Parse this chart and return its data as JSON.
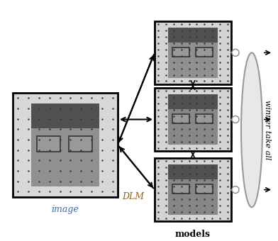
{
  "bg_color": "#ffffff",
  "title": "",
  "image_box_color": "#000000",
  "model_box_color": "#000000",
  "arrow_color": "#000000",
  "connector_color": "#888888",
  "ellipse_color": "#cccccc",
  "label_image": "image",
  "label_models": "models",
  "label_dlm": "DLM",
  "label_winner": "winner take all",
  "dot_color": "#444444",
  "face_bg": "#aaaaaa",
  "font_size_labels": 9,
  "font_size_winner": 8
}
